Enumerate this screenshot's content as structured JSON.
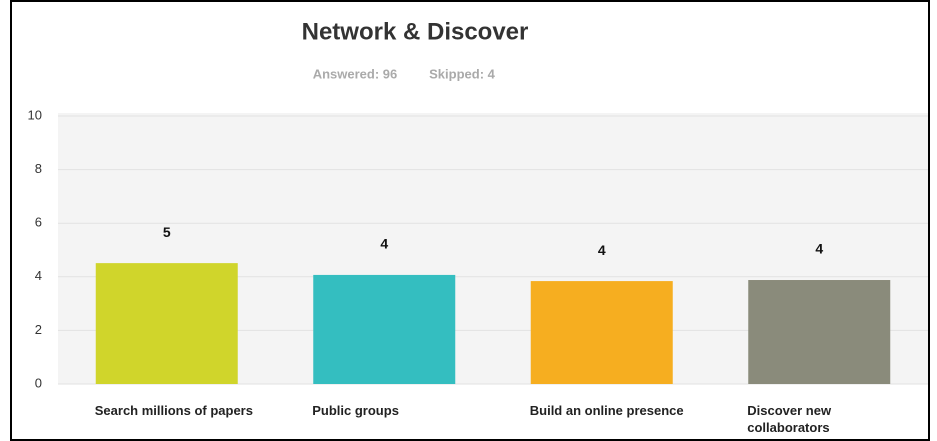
{
  "chart_data": {
    "type": "bar",
    "title": "Network & Discover",
    "answered": "Answered: 96",
    "skipped": "Skipped: 4",
    "categories": [
      "Search millions of papers",
      "Public groups",
      "Build an online presence",
      "Discover new collaborators"
    ],
    "values": [
      4.51,
      4.07,
      3.84,
      3.88
    ],
    "value_labels": [
      "5",
      "4",
      "4",
      "4"
    ],
    "colors": [
      "#d0d52b",
      "#34bec0",
      "#f6ae20",
      "#8a8b7b"
    ],
    "ylim": [
      0,
      10
    ],
    "yticks": [
      0,
      2,
      4,
      6,
      8,
      10
    ],
    "grid": true
  }
}
